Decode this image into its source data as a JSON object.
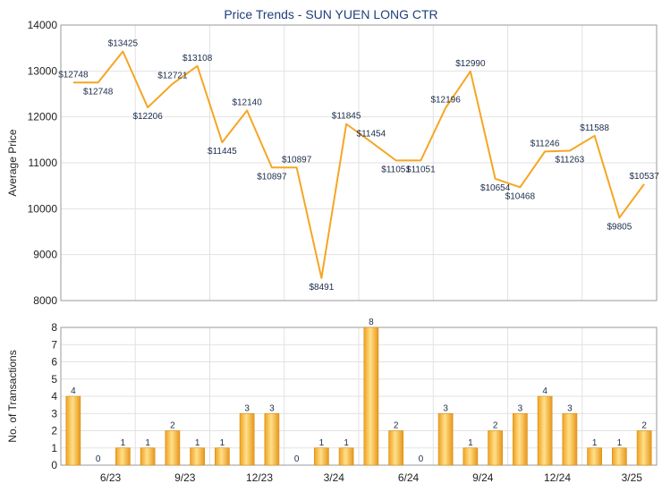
{
  "chart_data": [
    {
      "type": "line",
      "title": "Price Trends - SUN YUEN LONG CTR",
      "ylabel": "Average Price",
      "ylim": [
        8000,
        14000
      ],
      "yticks": [
        8000,
        9000,
        10000,
        11000,
        12000,
        13000,
        14000
      ],
      "grid": true,
      "color": "#f5a623",
      "series": [
        {
          "values": [
            12748,
            12748,
            13425,
            12206,
            12721,
            13108,
            11445,
            12140,
            10897,
            10897,
            8491,
            11845,
            11454,
            11051,
            11051,
            12196,
            12990,
            10654,
            10468,
            11246,
            11263,
            11588,
            9805,
            10537
          ],
          "labels": [
            "$12748",
            "$12748",
            "$13425",
            "$12206",
            "$12721",
            "$13108",
            "$11445",
            "$12140",
            "$10897",
            "$10897",
            "$8491",
            "$11845",
            "$11454",
            "$11051",
            "$11051",
            "$12196",
            "$12990",
            "$10654",
            "$10468",
            "$11246",
            "$11263",
            "$11588",
            "$9805",
            "$10537"
          ]
        }
      ]
    },
    {
      "type": "bar",
      "ylabel": "No. of Transactions",
      "ylim": [
        0,
        8
      ],
      "yticks": [
        0,
        1,
        2,
        3,
        4,
        5,
        6,
        7,
        8
      ],
      "grid": true,
      "xticks": [
        "6/23",
        "9/23",
        "12/23",
        "3/24",
        "6/24",
        "9/24",
        "12/24",
        "3/25"
      ],
      "values": [
        4,
        0,
        1,
        1,
        2,
        1,
        1,
        3,
        3,
        0,
        1,
        1,
        8,
        2,
        0,
        3,
        1,
        2,
        3,
        4,
        3,
        1,
        1,
        2
      ]
    }
  ]
}
